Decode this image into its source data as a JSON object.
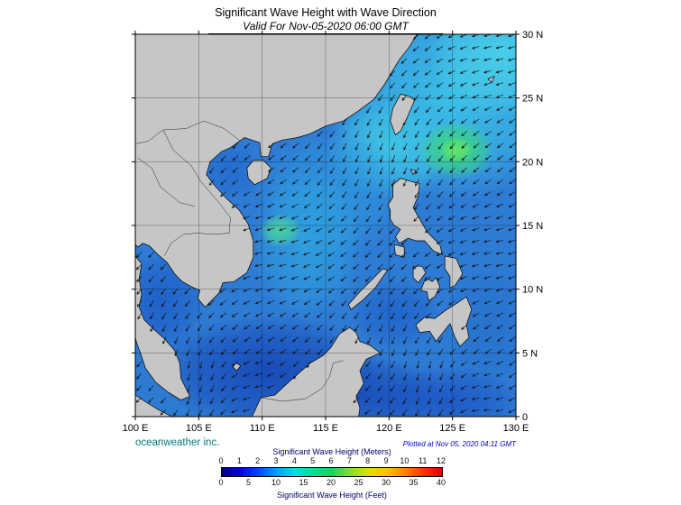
{
  "header": {
    "title": "Significant Wave Height with Wave Direction",
    "subtitle": "Valid For Nov-05-2020 06:00 GMT"
  },
  "footer": {
    "credit": "oceanweather inc.",
    "plotted": "Plotted at Nov 05, 2020 04:11 GMT"
  },
  "map": {
    "lon_tick_labels": [
      "100 E",
      "105 E",
      "110 E",
      "115 E",
      "120 E",
      "125 E",
      "130 E"
    ],
    "lat_tick_labels": [
      "30 N",
      "25 N",
      "20 N",
      "15 N",
      "10 N",
      "5 N",
      "0"
    ],
    "lon_ticks": [
      100,
      105,
      110,
      115,
      120,
      125,
      130
    ],
    "lat_ticks": [
      30,
      25,
      20,
      15,
      10,
      5,
      0
    ]
  },
  "legend": {
    "meters_label": "Significant Wave Height (Meters)",
    "feet_label": "Significant Wave Height (Feet)",
    "meters_ticks": [
      "0",
      "1",
      "2",
      "3",
      "4",
      "5",
      "6",
      "7",
      "8",
      "9",
      "10",
      "11",
      "12"
    ],
    "feet_ticks": [
      "0",
      "5",
      "10",
      "15",
      "20",
      "25",
      "30",
      "35",
      "40"
    ],
    "colorbar_colors": [
      "#000080",
      "#0000e0",
      "#0048ff",
      "#00a0ff",
      "#00e0e0",
      "#00e090",
      "#20d060",
      "#80e030",
      "#e0e000",
      "#ffc000",
      "#ff8000",
      "#ff3000",
      "#e00000"
    ]
  },
  "chart_data": {
    "type": "heatmap",
    "title": "Significant Wave Height with Wave Direction",
    "valid_time": "Nov-05-2020 06:00 GMT",
    "plotted_time": "Nov 05, 2020 04:11 GMT",
    "x_axis": {
      "units": "degrees East",
      "ticks": [
        100,
        105,
        110,
        115,
        120,
        125,
        130
      ],
      "range": [
        100,
        130
      ]
    },
    "y_axis": {
      "units": "degrees North",
      "ticks": [
        0,
        5,
        10,
        15,
        20,
        25,
        30
      ],
      "range": [
        0,
        30
      ]
    },
    "colorbar": {
      "primary_units": "Meters",
      "primary_range": [
        0,
        12
      ],
      "primary_ticks": [
        0,
        1,
        2,
        3,
        4,
        5,
        6,
        7,
        8,
        9,
        10,
        11,
        12
      ],
      "secondary_units": "Feet",
      "secondary_range": [
        0,
        40
      ],
      "secondary_ticks": [
        0,
        5,
        10,
        15,
        20,
        25,
        30,
        35,
        40
      ]
    },
    "features": [
      {
        "region": "Philippine Sea northeast of Luzon (~125E, 21N)",
        "wave_height_m": 4.5
      },
      {
        "region": "East China Sea and seas around Taiwan",
        "wave_height_m": 3
      },
      {
        "region": "Luzon Strait / northern South China Sea",
        "wave_height_m": 2.5
      },
      {
        "region": "Central South China Sea off Vietnam (~111.5E, 14.5N)",
        "wave_height_m": 3.5
      },
      {
        "region": "Gulf of Thailand",
        "wave_height_m": 1
      },
      {
        "region": "Southern South China Sea and Java Sea",
        "wave_height_m": 1
      },
      {
        "region": "Sulu and Celebes Seas",
        "wave_height_m": 1
      }
    ],
    "arrows": "wave direction vectors, predominantly propagating toward the southwest"
  }
}
